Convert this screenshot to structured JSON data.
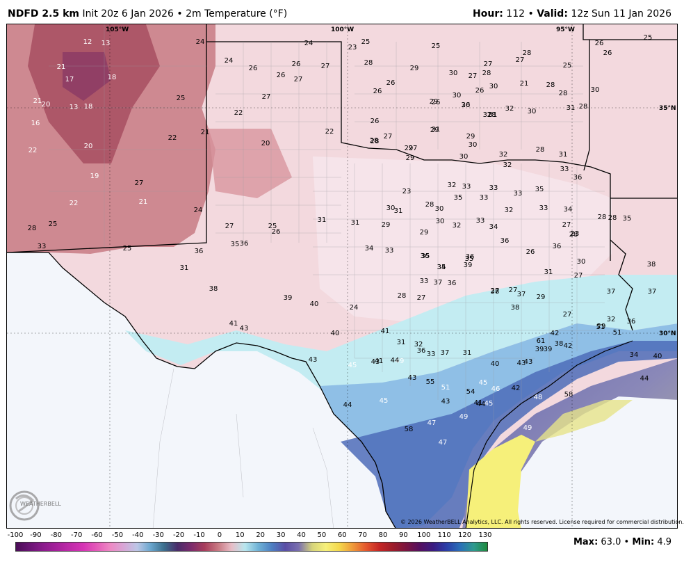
{
  "header": {
    "product": "NDFD 2.5 km",
    "init": "Init 20z 6 Jan 2026",
    "variable": "2m Temperature (°F)",
    "hour_label": "Hour:",
    "hour_value": "112",
    "valid_label": "Valid:",
    "valid_value": "12z Sun 11 Jan 2026"
  },
  "coords": [
    "105°W",
    "100°W",
    "95°W",
    "35°N",
    "30°N"
  ],
  "copyright": "© 2026 WeatherBELL Analytics, LLC. All rights reserved. License required for commercial distribution.",
  "logo_text": "WEATHERBELL",
  "legend": {
    "ticks": [
      "-100",
      "-90",
      "-80",
      "-70",
      "-60",
      "-50",
      "-40",
      "-30",
      "-20",
      "-10",
      "0",
      "10",
      "20",
      "30",
      "40",
      "50",
      "60",
      "70",
      "80",
      "90",
      "100",
      "110",
      "120",
      "130"
    ],
    "colors": [
      "#4a0d57",
      "#6a1474",
      "#8a1b8c",
      "#a5209b",
      "#bf2aa9",
      "#d634b5",
      "#e45ab9",
      "#ee88c4",
      "#d8a6d6",
      "#bcc6e6",
      "#6aa6ce",
      "#3c6f8d",
      "#4a2c6a",
      "#7b2b6c",
      "#a83d5c",
      "#c87882",
      "#e8bcc6",
      "#b8e6ee",
      "#6fb2d6",
      "#4d7fc2",
      "#5a4ea6",
      "#7a6fae",
      "#d6d47a",
      "#f6f07a",
      "#f4d84c",
      "#ef9a3a",
      "#e4572e",
      "#c42524",
      "#9c1c2a",
      "#7a1440",
      "#541060",
      "#3a1c82",
      "#2a3ea8",
      "#2a70b8",
      "#2e9a8e",
      "#1e8a3c"
    ]
  },
  "maxmin": {
    "max_label": "Max:",
    "max_value": "63.0",
    "min_label": "Min:",
    "min_value": "4.9"
  },
  "labels": [
    "12",
    "13",
    "24",
    "24",
    "23",
    "25",
    "25",
    "28",
    "25",
    "26",
    "21",
    "24",
    "26",
    "26",
    "27",
    "28",
    "27",
    "27",
    "25",
    "26",
    "17",
    "18",
    "26",
    "27",
    "30",
    "29",
    "27",
    "28",
    "30",
    "21",
    "21",
    "20",
    "25",
    "27",
    "26",
    "26",
    "29",
    "30",
    "26",
    "28",
    "28",
    "13",
    "18",
    "22",
    "26",
    "26",
    "28",
    "30",
    "31",
    "28",
    "30",
    "16",
    "31",
    "30",
    "31",
    "32",
    "22",
    "21",
    "22",
    "26",
    "20",
    "29",
    "29",
    "29",
    "28",
    "29",
    "30",
    "22",
    "20",
    "28",
    "27",
    "27",
    "32",
    "31",
    "30",
    "32",
    "28",
    "31",
    "33",
    "23",
    "19",
    "27",
    "31",
    "30",
    "32",
    "33",
    "33",
    "33",
    "35",
    "36",
    "22",
    "21",
    "24",
    "30",
    "28",
    "35",
    "33",
    "32",
    "33",
    "34",
    "28",
    "25",
    "27",
    "26",
    "25",
    "31",
    "31",
    "29",
    "29",
    "30",
    "32",
    "33",
    "34",
    "36",
    "26",
    "27",
    "28",
    "28",
    "28",
    "35",
    "36",
    "35",
    "36",
    "25",
    "33",
    "36",
    "34",
    "35",
    "36",
    "36",
    "23",
    "30",
    "27",
    "31",
    "34",
    "33",
    "35",
    "35",
    "37",
    "39",
    "31",
    "33",
    "36",
    "38",
    "27",
    "29",
    "27",
    "29",
    "32",
    "37",
    "38",
    "39",
    "40",
    "24",
    "28",
    "27",
    "27",
    "38",
    "37",
    "37",
    "38",
    "41",
    "43",
    "40",
    "41",
    "31",
    "32",
    "33",
    "31",
    "39",
    "42",
    "43",
    "61",
    "51",
    "51",
    "36",
    "34",
    "40",
    "43",
    "45",
    "43",
    "49",
    "36",
    "37",
    "38",
    "39",
    "43",
    "42",
    "41",
    "44",
    "43",
    "55",
    "51",
    "54",
    "40",
    "42",
    "41",
    "46",
    "44",
    "48",
    "58",
    "45",
    "44",
    "43",
    "44",
    "45",
    "45",
    "58",
    "47",
    "47",
    "49",
    "49"
  ]
}
